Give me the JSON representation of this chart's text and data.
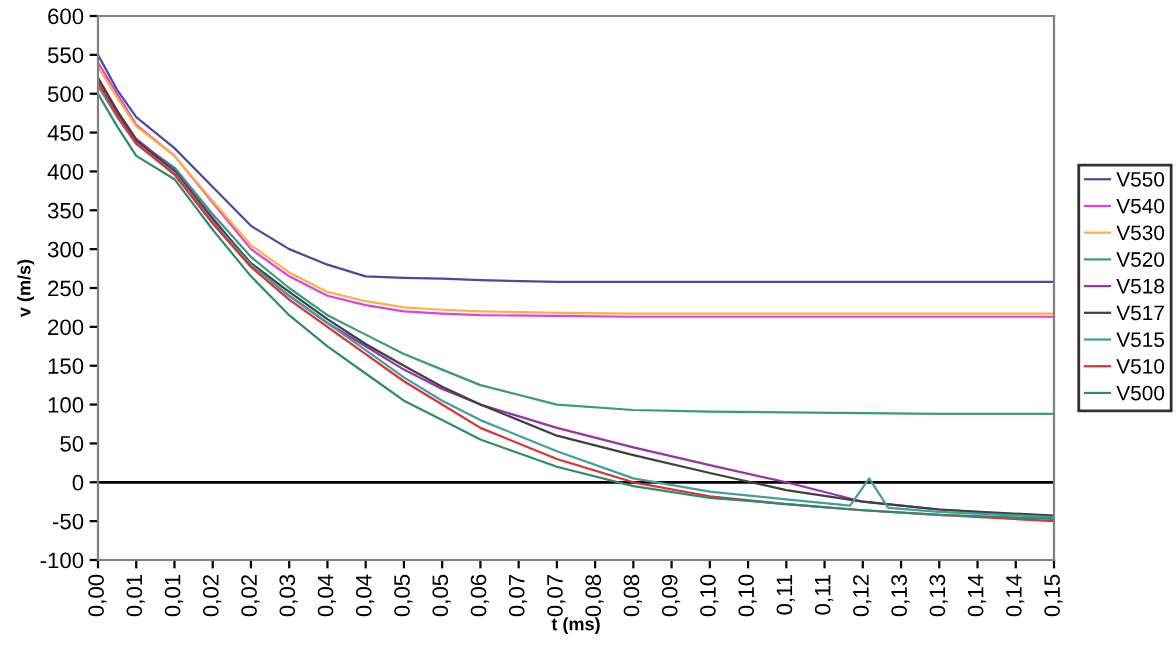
{
  "chart_data": {
    "type": "line",
    "xlabel": "t (ms)",
    "ylabel": "v (m/s)",
    "x": [
      0,
      0.003,
      0.006,
      0.012,
      0.018,
      0.024,
      0.03,
      0.036,
      0.042,
      0.048,
      0.054,
      0.06,
      0.072,
      0.084,
      0.096,
      0.108,
      0.12,
      0.132,
      0.15
    ],
    "series": [
      {
        "name": "V550",
        "color": "#4b4b9b",
        "values": [
          550,
          505,
          470,
          430,
          380,
          330,
          300,
          280,
          265,
          263,
          262,
          260,
          258,
          258,
          258,
          258,
          258,
          258,
          258
        ]
      },
      {
        "name": "V540",
        "color": "#e040e0",
        "values": [
          540,
          500,
          460,
          420,
          360,
          300,
          265,
          240,
          228,
          220,
          217,
          215,
          214,
          213,
          213,
          213,
          213,
          213,
          213
        ]
      },
      {
        "name": "V530",
        "color": "#ffb040",
        "values": [
          535,
          495,
          458,
          420,
          362,
          305,
          270,
          245,
          233,
          225,
          222,
          220,
          218,
          217,
          217,
          217,
          217,
          217,
          217
        ]
      },
      {
        "name": "V520",
        "color": "#3a9a7a",
        "values": [
          515,
          475,
          440,
          405,
          345,
          290,
          250,
          215,
          190,
          165,
          145,
          125,
          100,
          93,
          91,
          90,
          89,
          88,
          88
        ]
      },
      {
        "name": "V518",
        "color": "#9933aa",
        "values": [
          520,
          478,
          442,
          402,
          340,
          280,
          240,
          205,
          175,
          145,
          120,
          100,
          70,
          45,
          22,
          0,
          -25,
          -35,
          -45
        ]
      },
      {
        "name": "V517",
        "color": "#404040",
        "values": [
          520,
          478,
          440,
          400,
          338,
          282,
          245,
          210,
          178,
          150,
          123,
          100,
          60,
          35,
          12,
          -10,
          -25,
          -35,
          -43
        ]
      },
      {
        "name": "V515",
        "color": "#40a0a0",
        "x": [
          0,
          0.003,
          0.006,
          0.012,
          0.018,
          0.024,
          0.03,
          0.036,
          0.042,
          0.048,
          0.054,
          0.06,
          0.072,
          0.084,
          0.096,
          0.108,
          0.118,
          0.121,
          0.124,
          0.132,
          0.15
        ],
        "values": [
          510,
          470,
          435,
          398,
          335,
          280,
          240,
          205,
          170,
          135,
          105,
          80,
          40,
          5,
          -12,
          -22,
          -30,
          5,
          -33,
          -38,
          -45
        ]
      },
      {
        "name": "V510",
        "color": "#e03030",
        "values": [
          515,
          472,
          436,
          396,
          333,
          277,
          235,
          200,
          165,
          130,
          100,
          70,
          30,
          0,
          -18,
          -28,
          -36,
          -42,
          -50
        ]
      },
      {
        "name": "V500",
        "color": "#2e8b6e",
        "values": [
          500,
          458,
          420,
          390,
          325,
          265,
          215,
          175,
          140,
          105,
          80,
          55,
          20,
          -5,
          -20,
          -28,
          -36,
          -42,
          -47
        ]
      }
    ],
    "xlim": [
      0,
      0.15
    ],
    "xticks": [
      {
        "value": 0,
        "label": "0,00"
      },
      {
        "value": 0.006,
        "label": "0,01"
      },
      {
        "value": 0.012,
        "label": "0,01"
      },
      {
        "value": 0.018,
        "label": "0,02"
      },
      {
        "value": 0.024,
        "label": "0,02"
      },
      {
        "value": 0.03,
        "label": "0,03"
      },
      {
        "value": 0.036,
        "label": "0,04"
      },
      {
        "value": 0.042,
        "label": "0,04"
      },
      {
        "value": 0.048,
        "label": "0,05"
      },
      {
        "value": 0.054,
        "label": "0,05"
      },
      {
        "value": 0.06,
        "label": "0,06"
      },
      {
        "value": 0.066,
        "label": "0,07"
      },
      {
        "value": 0.072,
        "label": "0,07"
      },
      {
        "value": 0.078,
        "label": "0,08"
      },
      {
        "value": 0.084,
        "label": "0,08"
      },
      {
        "value": 0.09,
        "label": "0,09"
      },
      {
        "value": 0.096,
        "label": "0,10"
      },
      {
        "value": 0.102,
        "label": "0,10"
      },
      {
        "value": 0.108,
        "label": "0,11"
      },
      {
        "value": 0.114,
        "label": "0,11"
      },
      {
        "value": 0.12,
        "label": "0,12"
      },
      {
        "value": 0.126,
        "label": "0,13"
      },
      {
        "value": 0.132,
        "label": "0,13"
      },
      {
        "value": 0.138,
        "label": "0,14"
      },
      {
        "value": 0.144,
        "label": "0,14"
      },
      {
        "value": 0.15,
        "label": "0,15"
      }
    ],
    "ylim": [
      -100,
      600
    ],
    "yticks": [
      -100,
      -50,
      0,
      50,
      100,
      150,
      200,
      250,
      300,
      350,
      400,
      450,
      500,
      550,
      600
    ],
    "ref_lines": [
      {
        "axis": "y",
        "value": 0,
        "color": "#000000"
      }
    ],
    "grid": false,
    "legend": "right",
    "marker": "none",
    "line_style": "solid"
  }
}
